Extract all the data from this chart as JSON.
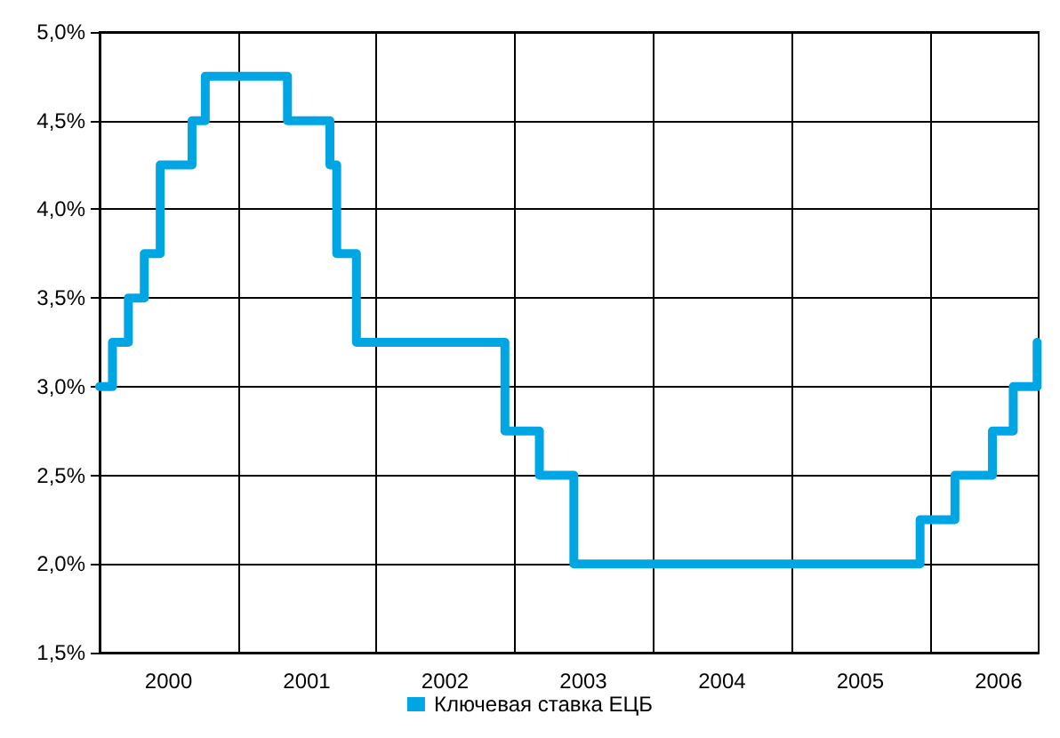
{
  "chart_data": {
    "type": "step",
    "x": [
      "2000-01-01",
      "2000-02-04",
      "2000-03-17",
      "2000-04-28",
      "2000-06-09",
      "2000-09-01",
      "2000-10-06",
      "2001-05-11",
      "2001-08-31",
      "2001-09-18",
      "2001-11-09",
      "2002-12-06",
      "2003-03-07",
      "2003-06-06",
      "2005-12-06",
      "2006-03-08",
      "2006-06-15",
      "2006-08-09",
      "2006-10-11"
    ],
    "series": [
      {
        "name": "Ключевая ставка ЕЦБ",
        "color": "#00a6e4",
        "values": [
          3.0,
          3.25,
          3.5,
          3.75,
          4.25,
          4.5,
          4.75,
          4.5,
          4.25,
          3.75,
          3.25,
          2.75,
          2.5,
          2.0,
          2.25,
          2.5,
          2.75,
          3.0,
          3.25
        ]
      }
    ],
    "xlim": [
      "2000-01-01",
      "2006-10-15"
    ],
    "xticks": [
      {
        "value": "2000-07-01",
        "label": "2000"
      },
      {
        "value": "2001-01-01",
        "label": null
      },
      {
        "value": "2001-07-01",
        "label": "2001"
      },
      {
        "value": "2002-01-01",
        "label": null
      },
      {
        "value": "2002-07-01",
        "label": "2002"
      },
      {
        "value": "2003-01-01",
        "label": null
      },
      {
        "value": "2003-07-01",
        "label": "2003"
      },
      {
        "value": "2004-01-01",
        "label": null
      },
      {
        "value": "2004-07-01",
        "label": "2004"
      },
      {
        "value": "2005-01-01",
        "label": null
      },
      {
        "value": "2005-07-01",
        "label": "2005"
      },
      {
        "value": "2006-01-01",
        "label": null
      },
      {
        "value": "2006-07-01",
        "label": "2006"
      }
    ],
    "ylim": [
      1.5,
      5.0
    ],
    "yticks": [
      {
        "value": 1.5,
        "label": "1,5%"
      },
      {
        "value": 2.0,
        "label": "2,0%"
      },
      {
        "value": 2.5,
        "label": "2,5%"
      },
      {
        "value": 3.0,
        "label": "3,0%"
      },
      {
        "value": 3.5,
        "label": "3,5%"
      },
      {
        "value": 4.0,
        "label": "4,0%"
      },
      {
        "value": 4.5,
        "label": "4,5%"
      },
      {
        "value": 5.0,
        "label": "5,0%"
      }
    ],
    "grid": true,
    "legend": "bottom",
    "marker": "none",
    "line_style": "solid"
  }
}
